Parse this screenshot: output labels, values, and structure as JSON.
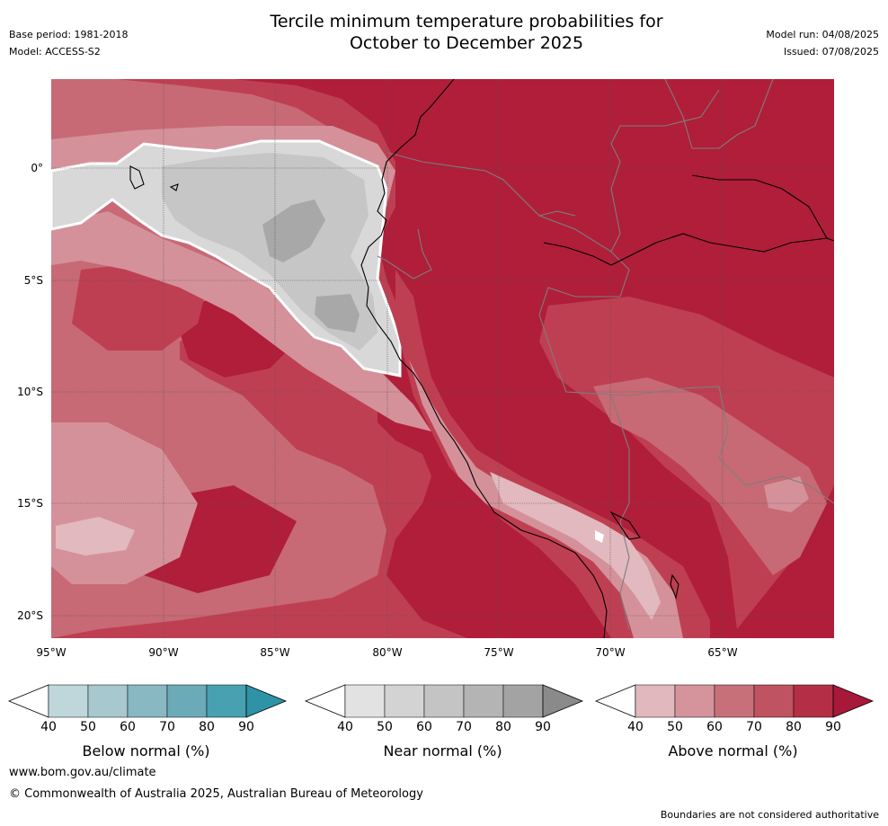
{
  "header": {
    "title_line1": "Tercile minimum temperature probabilities for",
    "title_line2": "October to December 2025",
    "base_period": "Base period: 1981-2018",
    "model": "Model: ACCESS-S2",
    "model_run": "Model run: 04/08/2025",
    "issued": "Issued: 07/08/2025"
  },
  "map": {
    "lat_labels": [
      "0°",
      "5°S",
      "10°S",
      "15°S",
      "20°S"
    ],
    "lon_labels": [
      "95°W",
      "90°W",
      "85°W",
      "80°W",
      "75°W",
      "70°W",
      "65°W"
    ],
    "colors": {
      "above_90": "#b01e3a",
      "above_80": "#bf3f52",
      "above_70": "#c76a75",
      "above_60": "#d5919a",
      "above_50": "#e2b9bf",
      "near_50": "#d8d8d8",
      "near_60": "#c6c6c6",
      "near_70": "#a8a8a8",
      "coast": "#000000",
      "border": "#7d7d7d",
      "grid": "#555555"
    }
  },
  "colorbars": [
    {
      "name": "Below normal (%)",
      "ticks": [
        "40",
        "50",
        "60",
        "70",
        "80",
        "90"
      ],
      "colors": [
        "#ffffff",
        "#bfd6db",
        "#a6c8ce",
        "#88b8c2",
        "#6aabb7",
        "#47a1b1",
        "#2e93a6"
      ]
    },
    {
      "name": "Near normal (%)",
      "ticks": [
        "40",
        "50",
        "60",
        "70",
        "80",
        "90"
      ],
      "colors": [
        "#ffffff",
        "#e2e2e2",
        "#d3d3d3",
        "#c4c4c4",
        "#b4b4b4",
        "#a3a3a3",
        "#8a8a8a"
      ]
    },
    {
      "name": "Above normal (%)",
      "ticks": [
        "40",
        "50",
        "60",
        "70",
        "80",
        "90"
      ],
      "colors": [
        "#ffffff",
        "#e0b8be",
        "#d5939c",
        "#c87079",
        "#bf5362",
        "#b42f45",
        "#a8183a"
      ]
    }
  ],
  "footer": {
    "website": "www.bom.gov.au/climate",
    "copyright": "© Commonwealth of Australia 2025, Australian Bureau of Meteorology",
    "disclaimer": "Boundaries are not considered authoritative"
  }
}
